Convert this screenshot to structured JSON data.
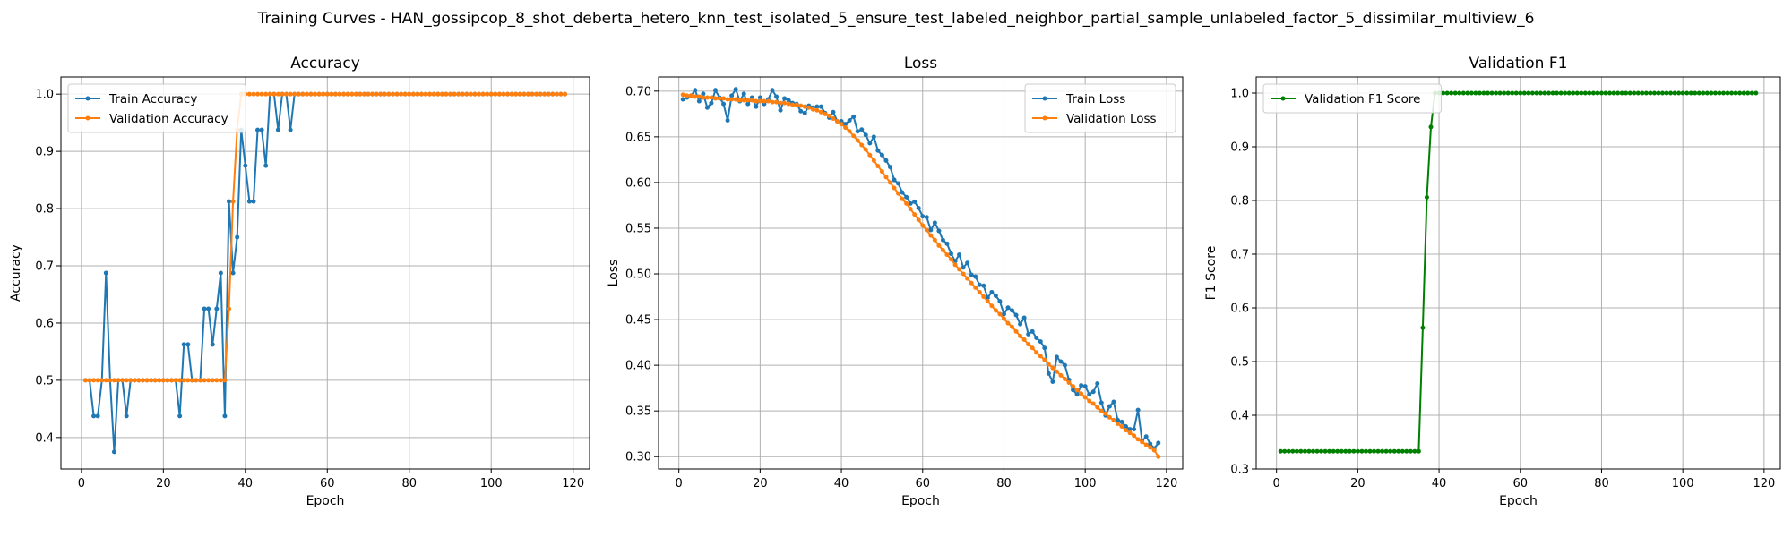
{
  "figure": {
    "title": "Training Curves - HAN_gossipcop_8_shot_deberta_hetero_knn_test_isolated_5_ensure_test_labeled_neighbor_partial_sample_unlabeled_factor_5_dissimilar_multiview_6"
  },
  "chart_data": [
    {
      "type": "line",
      "title": "Accuracy",
      "xlabel": "Epoch",
      "ylabel": "Accuracy",
      "xlim": [
        -5,
        124
      ],
      "ylim": [
        0.345,
        1.03
      ],
      "xticks": [
        0,
        20,
        40,
        60,
        80,
        100,
        120
      ],
      "yticks": [
        0.4,
        0.5,
        0.6,
        0.7,
        0.8,
        0.9,
        1.0
      ],
      "tick_decimals": 1,
      "grid": true,
      "legend": "upper left",
      "series": [
        {
          "name": "Train Accuracy",
          "color": "#1f77b4",
          "x_start": 1,
          "values": [
            0.5,
            0.5,
            0.4375,
            0.4375,
            0.5,
            0.6875,
            0.5,
            0.375,
            0.5,
            0.5,
            0.4375,
            0.5,
            0.5,
            0.5,
            0.5,
            0.5,
            0.5,
            0.5,
            0.5,
            0.5,
            0.5,
            0.5,
            0.5,
            0.4375,
            0.5625,
            0.5625,
            0.5,
            0.5,
            0.5,
            0.625,
            0.625,
            0.5625,
            0.625,
            0.6875,
            0.4375,
            0.8125,
            0.6875,
            0.75,
            0.9375,
            0.875,
            0.8125,
            0.8125,
            0.9375,
            0.9375,
            0.875,
            1.0,
            1.0,
            0.9375,
            1.0,
            1.0,
            0.9375,
            1.0,
            1.0,
            1.0,
            1.0,
            1.0,
            1.0,
            1.0,
            1.0,
            1.0,
            1.0,
            1.0,
            1.0,
            1.0,
            1.0,
            1.0,
            1.0,
            1.0,
            1.0,
            1.0,
            1.0,
            1.0,
            1.0,
            1.0,
            1.0,
            1.0,
            1.0,
            1.0,
            1.0,
            1.0,
            1.0,
            1.0,
            1.0,
            1.0,
            1.0,
            1.0,
            1.0,
            1.0,
            1.0,
            1.0,
            1.0,
            1.0,
            1.0,
            1.0,
            1.0,
            1.0,
            1.0,
            1.0,
            1.0,
            1.0,
            1.0,
            1.0,
            1.0,
            1.0,
            1.0,
            1.0,
            1.0,
            1.0,
            1.0,
            1.0,
            1.0,
            1.0,
            1.0,
            1.0,
            1.0,
            1.0,
            1.0,
            1.0
          ]
        },
        {
          "name": "Validation Accuracy",
          "color": "#ff7f0e",
          "x_start": 1,
          "values": [
            0.5,
            0.5,
            0.5,
            0.5,
            0.5,
            0.5,
            0.5,
            0.5,
            0.5,
            0.5,
            0.5,
            0.5,
            0.5,
            0.5,
            0.5,
            0.5,
            0.5,
            0.5,
            0.5,
            0.5,
            0.5,
            0.5,
            0.5,
            0.5,
            0.5,
            0.5,
            0.5,
            0.5,
            0.5,
            0.5,
            0.5,
            0.5,
            0.5,
            0.5,
            0.5,
            0.625,
            0.8125,
            0.9375,
            1.0,
            1.0,
            1.0,
            1.0,
            1.0,
            1.0,
            1.0,
            1.0,
            1.0,
            1.0,
            1.0,
            1.0,
            1.0,
            1.0,
            1.0,
            1.0,
            1.0,
            1.0,
            1.0,
            1.0,
            1.0,
            1.0,
            1.0,
            1.0,
            1.0,
            1.0,
            1.0,
            1.0,
            1.0,
            1.0,
            1.0,
            1.0,
            1.0,
            1.0,
            1.0,
            1.0,
            1.0,
            1.0,
            1.0,
            1.0,
            1.0,
            1.0,
            1.0,
            1.0,
            1.0,
            1.0,
            1.0,
            1.0,
            1.0,
            1.0,
            1.0,
            1.0,
            1.0,
            1.0,
            1.0,
            1.0,
            1.0,
            1.0,
            1.0,
            1.0,
            1.0,
            1.0,
            1.0,
            1.0,
            1.0,
            1.0,
            1.0,
            1.0,
            1.0,
            1.0,
            1.0,
            1.0,
            1.0,
            1.0,
            1.0,
            1.0,
            1.0,
            1.0,
            1.0,
            1.0
          ]
        }
      ]
    },
    {
      "type": "line",
      "title": "Loss",
      "xlabel": "Epoch",
      "ylabel": "Loss",
      "xlim": [
        -5,
        124
      ],
      "ylim": [
        0.2865,
        0.7155
      ],
      "xticks": [
        0,
        20,
        40,
        60,
        80,
        100,
        120
      ],
      "yticks": [
        0.3,
        0.35,
        0.4,
        0.45,
        0.5,
        0.55,
        0.6,
        0.65,
        0.7
      ],
      "tick_decimals": 2,
      "grid": true,
      "legend": "upper right",
      "series": [
        {
          "name": "Train Loss",
          "color": "#1f77b4",
          "x_start": 1,
          "values": [
            0.691,
            0.693,
            0.695,
            0.701,
            0.689,
            0.697,
            0.682,
            0.687,
            0.701,
            0.693,
            0.686,
            0.668,
            0.695,
            0.702,
            0.689,
            0.697,
            0.686,
            0.693,
            0.683,
            0.693,
            0.686,
            0.691,
            0.701,
            0.694,
            0.679,
            0.692,
            0.69,
            0.687,
            0.686,
            0.678,
            0.676,
            0.684,
            0.682,
            0.683,
            0.683,
            0.676,
            0.671,
            0.677,
            0.667,
            0.667,
            0.664,
            0.668,
            0.672,
            0.656,
            0.658,
            0.652,
            0.643,
            0.65,
            0.635,
            0.63,
            0.624,
            0.617,
            0.603,
            0.599,
            0.589,
            0.584,
            0.577,
            0.579,
            0.572,
            0.563,
            0.562,
            0.548,
            0.556,
            0.547,
            0.537,
            0.533,
            0.522,
            0.514,
            0.521,
            0.507,
            0.512,
            0.499,
            0.497,
            0.488,
            0.487,
            0.474,
            0.48,
            0.476,
            0.47,
            0.456,
            0.463,
            0.46,
            0.455,
            0.445,
            0.452,
            0.434,
            0.437,
            0.43,
            0.426,
            0.419,
            0.391,
            0.382,
            0.409,
            0.404,
            0.4,
            0.384,
            0.373,
            0.368,
            0.378,
            0.377,
            0.368,
            0.371,
            0.38,
            0.359,
            0.345,
            0.355,
            0.36,
            0.34,
            0.338,
            0.333,
            0.33,
            0.33,
            0.351,
            0.317,
            0.322,
            0.314,
            0.309,
            0.315
          ]
        },
        {
          "name": "Validation Loss",
          "color": "#ff7f0e",
          "x_start": 1,
          "values": [
            0.696,
            0.695,
            0.695,
            0.694,
            0.694,
            0.693,
            0.693,
            0.693,
            0.692,
            0.692,
            0.692,
            0.691,
            0.691,
            0.691,
            0.69,
            0.69,
            0.69,
            0.69,
            0.689,
            0.689,
            0.689,
            0.689,
            0.688,
            0.688,
            0.687,
            0.687,
            0.686,
            0.685,
            0.685,
            0.684,
            0.683,
            0.682,
            0.68,
            0.679,
            0.677,
            0.675,
            0.673,
            0.67,
            0.667,
            0.664,
            0.66,
            0.656,
            0.651,
            0.646,
            0.641,
            0.636,
            0.63,
            0.624,
            0.618,
            0.612,
            0.606,
            0.6,
            0.594,
            0.588,
            0.582,
            0.577,
            0.571,
            0.565,
            0.559,
            0.553,
            0.548,
            0.542,
            0.537,
            0.531,
            0.526,
            0.521,
            0.516,
            0.51,
            0.505,
            0.5,
            0.495,
            0.49,
            0.485,
            0.48,
            0.475,
            0.47,
            0.465,
            0.46,
            0.456,
            0.451,
            0.446,
            0.442,
            0.437,
            0.432,
            0.428,
            0.423,
            0.419,
            0.414,
            0.41,
            0.406,
            0.401,
            0.397,
            0.393,
            0.389,
            0.385,
            0.381,
            0.377,
            0.373,
            0.369,
            0.365,
            0.361,
            0.358,
            0.354,
            0.35,
            0.347,
            0.343,
            0.34,
            0.336,
            0.333,
            0.329,
            0.326,
            0.323,
            0.319,
            0.316,
            0.313,
            0.31,
            0.307,
            0.3
          ]
        }
      ]
    },
    {
      "type": "line",
      "title": "Validation F1",
      "xlabel": "Epoch",
      "ylabel": "F1 Score",
      "xlim": [
        -5,
        124
      ],
      "ylim": [
        0.3,
        1.03
      ],
      "xticks": [
        0,
        20,
        40,
        60,
        80,
        100,
        120
      ],
      "yticks": [
        0.3,
        0.4,
        0.5,
        0.6,
        0.7,
        0.8,
        0.9,
        1.0
      ],
      "tick_decimals": 1,
      "grid": true,
      "legend": "upper left",
      "series": [
        {
          "name": "Validation F1 Score",
          "color": "#008000",
          "x_start": 1,
          "values": [
            0.333,
            0.333,
            0.333,
            0.333,
            0.333,
            0.333,
            0.333,
            0.333,
            0.333,
            0.333,
            0.333,
            0.333,
            0.333,
            0.333,
            0.333,
            0.333,
            0.333,
            0.333,
            0.333,
            0.333,
            0.333,
            0.333,
            0.333,
            0.333,
            0.333,
            0.333,
            0.333,
            0.333,
            0.333,
            0.333,
            0.333,
            0.333,
            0.333,
            0.333,
            0.333,
            0.563,
            0.806,
            0.937,
            1.0,
            1.0,
            1.0,
            1.0,
            1.0,
            1.0,
            1.0,
            1.0,
            1.0,
            1.0,
            1.0,
            1.0,
            1.0,
            1.0,
            1.0,
            1.0,
            1.0,
            1.0,
            1.0,
            1.0,
            1.0,
            1.0,
            1.0,
            1.0,
            1.0,
            1.0,
            1.0,
            1.0,
            1.0,
            1.0,
            1.0,
            1.0,
            1.0,
            1.0,
            1.0,
            1.0,
            1.0,
            1.0,
            1.0,
            1.0,
            1.0,
            1.0,
            1.0,
            1.0,
            1.0,
            1.0,
            1.0,
            1.0,
            1.0,
            1.0,
            1.0,
            1.0,
            1.0,
            1.0,
            1.0,
            1.0,
            1.0,
            1.0,
            1.0,
            1.0,
            1.0,
            1.0,
            1.0,
            1.0,
            1.0,
            1.0,
            1.0,
            1.0,
            1.0,
            1.0,
            1.0,
            1.0,
            1.0,
            1.0,
            1.0,
            1.0,
            1.0,
            1.0,
            1.0,
            1.0
          ]
        }
      ]
    }
  ]
}
